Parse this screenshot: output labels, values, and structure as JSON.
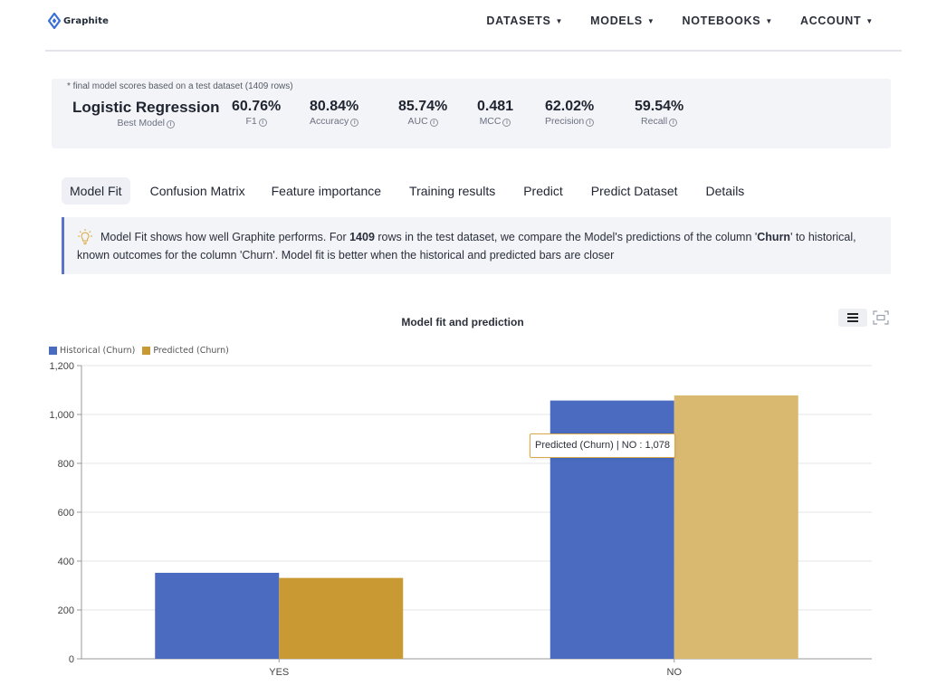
{
  "nav": {
    "brand": "Graphite",
    "items": [
      {
        "label": "DATASETS"
      },
      {
        "label": "MODELS"
      },
      {
        "label": "NOTEBOOKS"
      },
      {
        "label": "ACCOUNT"
      }
    ]
  },
  "scores": {
    "note": "* final model scores based on a test dataset (1409 rows)",
    "best_model": {
      "value": "Logistic Regression",
      "label": "Best Model"
    },
    "metrics": [
      {
        "value": "60.76%",
        "label": "F1"
      },
      {
        "value": "80.84%",
        "label": "Accuracy"
      },
      {
        "value": "85.74%",
        "label": "AUC"
      },
      {
        "value": "0.481",
        "label": "MCC"
      },
      {
        "value": "62.02%",
        "label": "Precision"
      },
      {
        "value": "59.54%",
        "label": "Recall"
      }
    ]
  },
  "tabs": [
    {
      "label": "Model Fit",
      "active": true
    },
    {
      "label": "Confusion Matrix"
    },
    {
      "label": "Feature importance"
    },
    {
      "label": "Training results"
    },
    {
      "label": "Predict"
    },
    {
      "label": "Predict Dataset"
    },
    {
      "label": "Details"
    }
  ],
  "banner": {
    "t1": "Model Fit shows how well Graphite performs. For ",
    "rows": "1409",
    "t2": " rows in the test dataset, we compare the Model's predictions of the column '",
    "column": "Churn",
    "t3": "' to historical, known outcomes for the column 'Churn'. Model fit is better when the historical and predicted bars are closer"
  },
  "tooltip": "Predicted (Churn) | NO : 1,078",
  "colors": {
    "historical": "#4a6bbf",
    "predicted_yes": "#c99a33",
    "predicted_no": "#d9b86f",
    "banner_accent": "#5b73c9"
  },
  "chart_data": {
    "type": "bar",
    "title": "Model fit and prediction",
    "categories": [
      "YES",
      "NO"
    ],
    "series": [
      {
        "name": "Historical (Churn)",
        "values": [
          352,
          1057
        ]
      },
      {
        "name": "Predicted (Churn)",
        "values": [
          331,
          1078
        ]
      }
    ],
    "ylim": [
      0,
      1200
    ],
    "yticks": [
      "0",
      "200",
      "400",
      "600",
      "800",
      "1,000",
      "1,200"
    ],
    "grid": true,
    "legend": "top-left"
  }
}
